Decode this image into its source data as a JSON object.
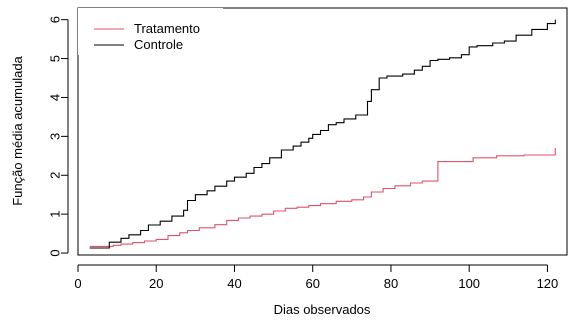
{
  "chart_data": {
    "type": "line",
    "line_style": "step",
    "xlabel": "Dias observados",
    "ylabel": "Função média acumulada",
    "xlim": [
      0,
      125
    ],
    "ylim": [
      -0.05,
      6.3
    ],
    "xticks": [
      0,
      20,
      40,
      60,
      80,
      100,
      120
    ],
    "yticks": [
      0,
      1,
      2,
      3,
      4,
      5,
      6
    ],
    "grid": false,
    "legend_position": "top-left",
    "series": [
      {
        "name": "Tratamento",
        "color": "#DF536B",
        "x": [
          3,
          7,
          9,
          11,
          14,
          17,
          20,
          23,
          26,
          28,
          31,
          35,
          38,
          41,
          44,
          47,
          50,
          53,
          56,
          59,
          62,
          66,
          70,
          73,
          75,
          78,
          81,
          85,
          88,
          92,
          100,
          101,
          107,
          111,
          114,
          120,
          122
        ],
        "y": [
          0.17,
          0.17,
          0.2,
          0.23,
          0.27,
          0.31,
          0.35,
          0.45,
          0.52,
          0.58,
          0.65,
          0.73,
          0.84,
          0.9,
          0.95,
          1.0,
          1.08,
          1.15,
          1.18,
          1.22,
          1.27,
          1.33,
          1.37,
          1.44,
          1.57,
          1.66,
          1.73,
          1.8,
          1.85,
          2.35,
          2.35,
          2.45,
          2.5,
          2.5,
          2.52,
          2.52,
          2.7
        ]
      },
      {
        "name": "Controle",
        "color": "#000000",
        "x": [
          3,
          7,
          8,
          11,
          13,
          16,
          18,
          21,
          24,
          27,
          28,
          30,
          33,
          35,
          38,
          40,
          43,
          45,
          47,
          49,
          52,
          55,
          57,
          59,
          60,
          62,
          64,
          66,
          68,
          71,
          74,
          75,
          77,
          79,
          83,
          86,
          88,
          90,
          92,
          95,
          98,
          100,
          102,
          106,
          109,
          112,
          116,
          120,
          122
        ],
        "y": [
          0.13,
          0.13,
          0.28,
          0.38,
          0.47,
          0.58,
          0.72,
          0.82,
          0.95,
          1.1,
          1.35,
          1.5,
          1.6,
          1.72,
          1.85,
          1.95,
          2.05,
          2.2,
          2.3,
          2.45,
          2.65,
          2.75,
          2.85,
          2.95,
          3.05,
          3.15,
          3.3,
          3.35,
          3.45,
          3.55,
          3.9,
          4.2,
          4.5,
          4.55,
          4.6,
          4.7,
          4.8,
          4.95,
          4.98,
          5.02,
          5.1,
          5.3,
          5.33,
          5.4,
          5.45,
          5.6,
          5.75,
          5.9,
          6.0
        ]
      }
    ]
  }
}
